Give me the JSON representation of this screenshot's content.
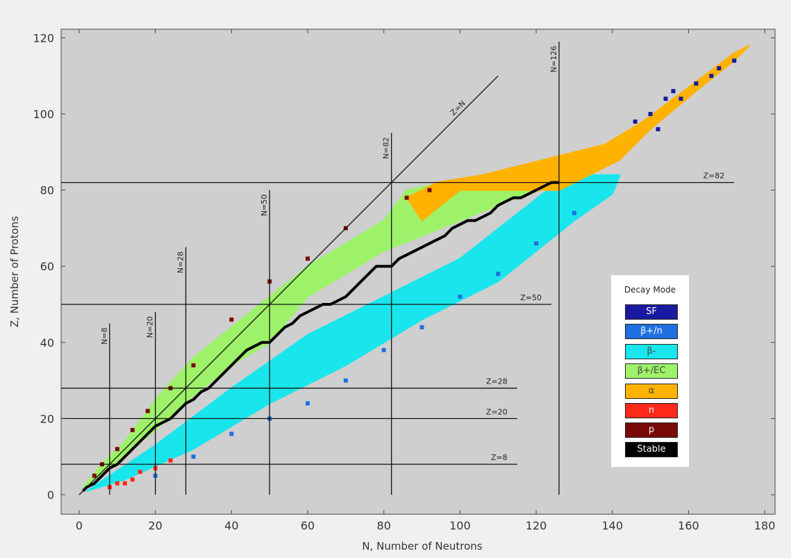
{
  "chart_data": {
    "type": "scatter",
    "title": "",
    "xlabel": "N, Number of Neutrons",
    "ylabel": "Z, Number of Protons",
    "xlim": [
      -5,
      182
    ],
    "ylim": [
      -5,
      123
    ],
    "x_ticks": [
      "0",
      "20",
      "40",
      "60",
      "80",
      "100",
      "120",
      "140",
      "160",
      "180"
    ],
    "y_ticks": [
      "0",
      "20",
      "40",
      "60",
      "80",
      "100",
      "120"
    ],
    "grid": false,
    "legend_title": "Decay Mode",
    "legend_position": "right",
    "series": [
      {
        "name": "SF",
        "color": "#1a1aa0"
      },
      {
        "name": "β+/n",
        "color": "#1e6fe0"
      },
      {
        "name": "β-",
        "color": "#19e6ec"
      },
      {
        "name": "β+/EC",
        "color": "#9ef26a"
      },
      {
        "name": "α",
        "color": "#ffb300"
      },
      {
        "name": "n",
        "color": "#ff2a1a"
      },
      {
        "name": "p",
        "color": "#7a0a0a"
      },
      {
        "name": "Stable",
        "color": "#000000"
      }
    ],
    "bands": [
      {
        "name": "β-",
        "color": "#19e6ec",
        "poly": [
          [
            2,
            1
          ],
          [
            12,
            4
          ],
          [
            30,
            12
          ],
          [
            50,
            24
          ],
          [
            70,
            34
          ],
          [
            90,
            46
          ],
          [
            110,
            56
          ],
          [
            130,
            72
          ],
          [
            140,
            79
          ],
          [
            142,
            84
          ],
          [
            128,
            84
          ],
          [
            100,
            62
          ],
          [
            80,
            52
          ],
          [
            60,
            42
          ],
          [
            40,
            28
          ],
          [
            20,
            13
          ],
          [
            8,
            5
          ]
        ]
      },
      {
        "name": "β+/EC",
        "color": "#9ef26a",
        "poly": [
          [
            1,
            2
          ],
          [
            8,
            7
          ],
          [
            14,
            12
          ],
          [
            20,
            17
          ],
          [
            30,
            26
          ],
          [
            40,
            34
          ],
          [
            50,
            40
          ],
          [
            60,
            52
          ],
          [
            70,
            58
          ],
          [
            80,
            64
          ],
          [
            90,
            68
          ],
          [
            100,
            72
          ],
          [
            115,
            78
          ],
          [
            126,
            82
          ],
          [
            110,
            83
          ],
          [
            96,
            82
          ],
          [
            86,
            80
          ],
          [
            80,
            72
          ],
          [
            70,
            66
          ],
          [
            60,
            60
          ],
          [
            50,
            52
          ],
          [
            40,
            44
          ],
          [
            30,
            36
          ],
          [
            20,
            25
          ],
          [
            12,
            14
          ],
          [
            5,
            7
          ]
        ]
      },
      {
        "name": "α",
        "color": "#ffb300",
        "poly": [
          [
            86,
            78
          ],
          [
            94,
            82
          ],
          [
            106,
            84
          ],
          [
            122,
            88
          ],
          [
            138,
            92
          ],
          [
            148,
            98
          ],
          [
            156,
            104
          ],
          [
            164,
            110
          ],
          [
            172,
            116
          ],
          [
            176,
            118
          ],
          [
            172,
            114
          ],
          [
            162,
            106
          ],
          [
            150,
            96
          ],
          [
            142,
            88
          ],
          [
            126,
            80
          ],
          [
            116,
            80
          ],
          [
            100,
            80
          ],
          [
            90,
            72
          ]
        ]
      }
    ],
    "stable_line": [
      [
        1,
        1
      ],
      [
        2,
        2
      ],
      [
        4,
        3
      ],
      [
        6,
        5
      ],
      [
        8,
        7
      ],
      [
        10,
        8
      ],
      [
        12,
        10
      ],
      [
        14,
        12
      ],
      [
        16,
        14
      ],
      [
        18,
        16
      ],
      [
        20,
        18
      ],
      [
        22,
        19
      ],
      [
        24,
        20
      ],
      [
        26,
        22
      ],
      [
        28,
        24
      ],
      [
        30,
        25
      ],
      [
        32,
        27
      ],
      [
        34,
        28
      ],
      [
        36,
        30
      ],
      [
        38,
        32
      ],
      [
        40,
        34
      ],
      [
        42,
        36
      ],
      [
        44,
        38
      ],
      [
        46,
        39
      ],
      [
        48,
        40
      ],
      [
        50,
        40
      ],
      [
        52,
        42
      ],
      [
        54,
        44
      ],
      [
        56,
        45
      ],
      [
        58,
        47
      ],
      [
        60,
        48
      ],
      [
        62,
        49
      ],
      [
        64,
        50
      ],
      [
        66,
        50
      ],
      [
        68,
        51
      ],
      [
        70,
        52
      ],
      [
        72,
        54
      ],
      [
        74,
        56
      ],
      [
        76,
        58
      ],
      [
        78,
        60
      ],
      [
        82,
        60
      ],
      [
        84,
        62
      ],
      [
        86,
        63
      ],
      [
        88,
        64
      ],
      [
        90,
        65
      ],
      [
        92,
        66
      ],
      [
        94,
        67
      ],
      [
        96,
        68
      ],
      [
        98,
        70
      ],
      [
        100,
        71
      ],
      [
        102,
        72
      ],
      [
        104,
        72
      ],
      [
        106,
        73
      ],
      [
        108,
        74
      ],
      [
        110,
        76
      ],
      [
        112,
        77
      ],
      [
        114,
        78
      ],
      [
        116,
        78
      ],
      [
        118,
        79
      ],
      [
        120,
        80
      ],
      [
        122,
        81
      ],
      [
        124,
        82
      ],
      [
        126,
        82
      ]
    ],
    "scatter_points": {
      "SF": [
        [
          146,
          98
        ],
        [
          150,
          100
        ],
        [
          154,
          104
        ],
        [
          158,
          104
        ],
        [
          162,
          108
        ],
        [
          166,
          110
        ],
        [
          168,
          112
        ],
        [
          172,
          114
        ],
        [
          152,
          96
        ],
        [
          156,
          106
        ]
      ],
      "β+/n": [
        [
          20,
          5
        ],
        [
          30,
          10
        ],
        [
          40,
          16
        ],
        [
          50,
          20
        ],
        [
          60,
          24
        ],
        [
          70,
          30
        ],
        [
          80,
          38
        ],
        [
          90,
          44
        ],
        [
          100,
          52
        ],
        [
          110,
          58
        ],
        [
          120,
          66
        ],
        [
          130,
          74
        ]
      ],
      "n": [
        [
          8,
          2
        ],
        [
          10,
          3
        ],
        [
          12,
          3
        ],
        [
          14,
          4
        ],
        [
          16,
          6
        ],
        [
          20,
          7
        ],
        [
          24,
          9
        ]
      ],
      "p": [
        [
          4,
          5
        ],
        [
          6,
          8
        ],
        [
          10,
          12
        ],
        [
          14,
          17
        ],
        [
          18,
          22
        ],
        [
          24,
          28
        ],
        [
          30,
          34
        ],
        [
          40,
          46
        ],
        [
          50,
          56
        ],
        [
          60,
          62
        ],
        [
          70,
          70
        ],
        [
          86,
          78
        ],
        [
          92,
          80
        ]
      ]
    },
    "reference_lines": [
      {
        "label": "Z=N",
        "orientation": "diagonal",
        "from": [
          0,
          0
        ],
        "to": [
          110,
          110
        ]
      },
      {
        "label": "N=8",
        "orientation": "vertical",
        "at": 8,
        "from": 0,
        "to": 45
      },
      {
        "label": "N=20",
        "orientation": "vertical",
        "at": 20,
        "from": 0,
        "to": 48
      },
      {
        "label": "N=28",
        "orientation": "vertical",
        "at": 28,
        "from": 0,
        "to": 65
      },
      {
        "label": "N=50",
        "orientation": "vertical",
        "at": 50,
        "from": 0,
        "to": 80
      },
      {
        "label": "N=82",
        "orientation": "vertical",
        "at": 82,
        "from": 0,
        "to": 95
      },
      {
        "label": "N=126",
        "orientation": "vertical",
        "at": 126,
        "from": 0,
        "to": 119
      },
      {
        "label": "Z=8",
        "orientation": "horizontal",
        "at": 8,
        "from": -5,
        "to": 115
      },
      {
        "label": "Z=20",
        "orientation": "horizontal",
        "at": 20,
        "from": -5,
        "to": 115
      },
      {
        "label": "Z=28",
        "orientation": "horizontal",
        "at": 28,
        "from": -5,
        "to": 115
      },
      {
        "label": "Z=50",
        "orientation": "horizontal",
        "at": 50,
        "from": -5,
        "to": 124
      },
      {
        "label": "Z=82",
        "orientation": "horizontal",
        "at": 82,
        "from": -5,
        "to": 172
      }
    ]
  }
}
